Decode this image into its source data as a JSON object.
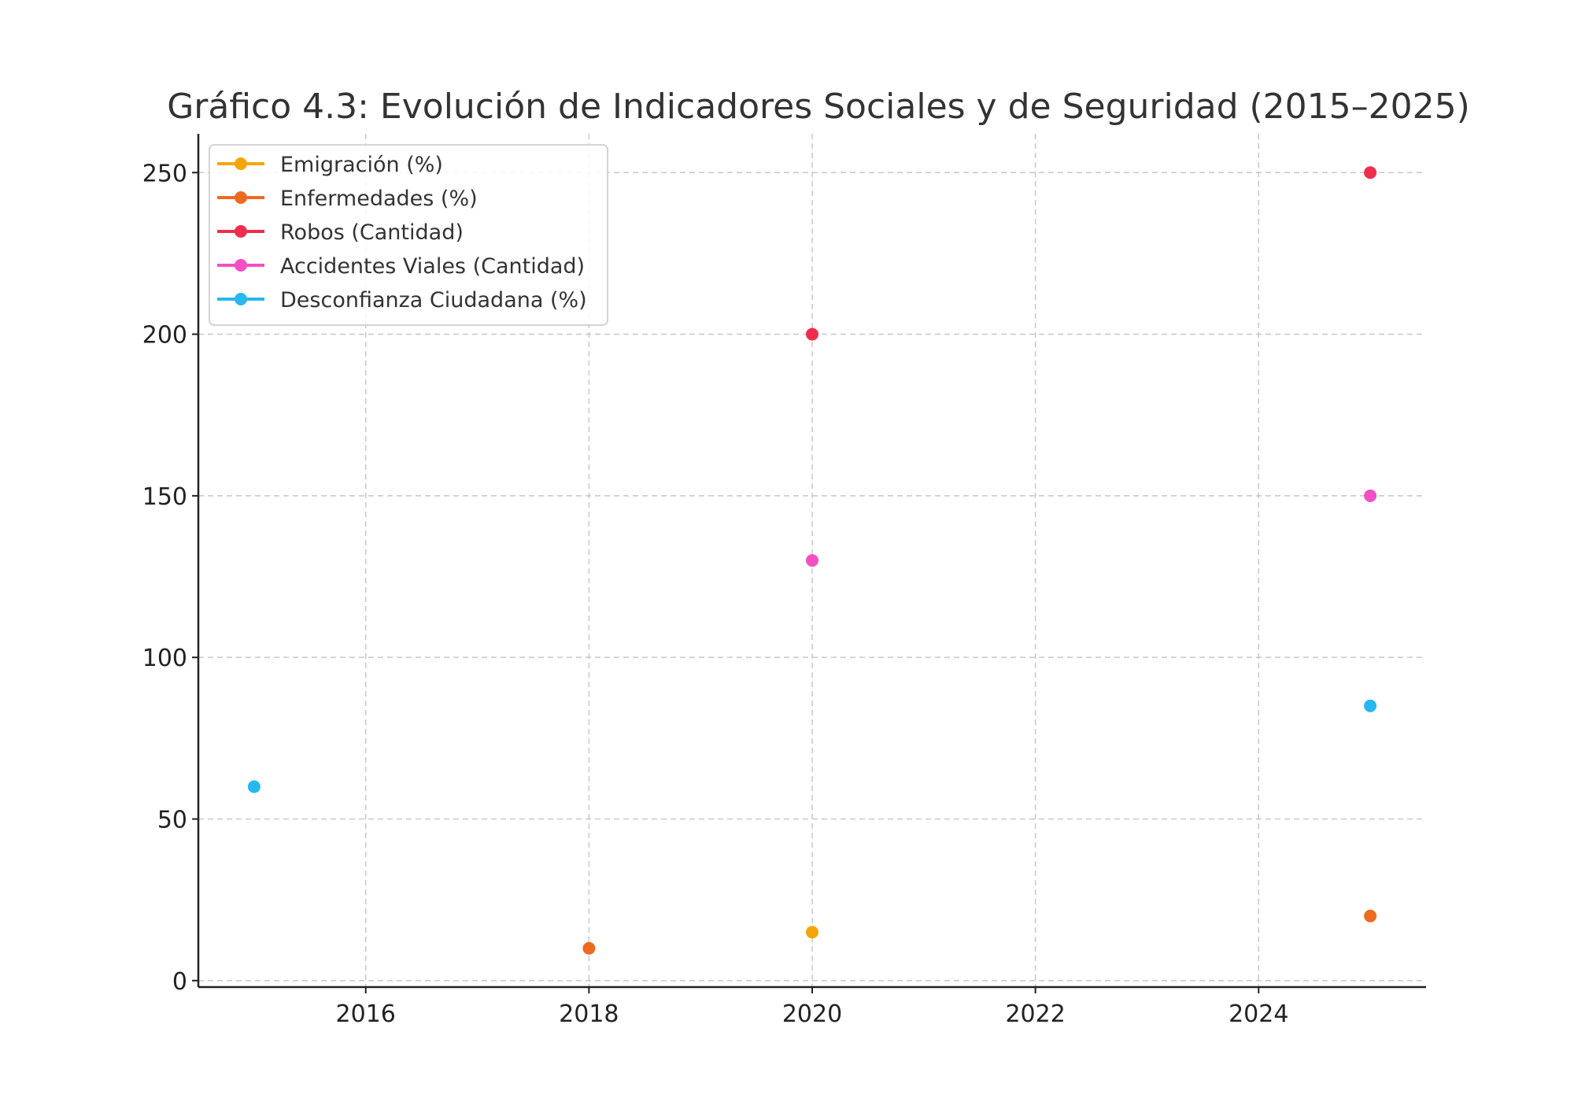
{
  "chart_data": {
    "type": "scatter",
    "title": "Gráfico 4.3: Evolución de Indicadores Sociales y de Seguridad (2015–2025)",
    "xlabel": "",
    "ylabel": "",
    "xlim": [
      2014.5,
      2025.5
    ],
    "ylim": [
      -2,
      262
    ],
    "x_ticks": [
      2016,
      2018,
      2020,
      2022,
      2024
    ],
    "y_ticks": [
      0,
      50,
      100,
      150,
      200,
      250
    ],
    "grid": true,
    "legend_position": "top-left",
    "series": [
      {
        "name": "Emigración (%)",
        "color": "#f5a50a",
        "points": [
          [
            2020,
            15
          ]
        ]
      },
      {
        "name": "Enfermedades (%)",
        "color": "#ee6a1f",
        "points": [
          [
            2018,
            10
          ],
          [
            2025,
            20
          ]
        ]
      },
      {
        "name": "Robos (Cantidad)",
        "color": "#ee2e4e",
        "points": [
          [
            2020,
            200
          ],
          [
            2025,
            250
          ]
        ]
      },
      {
        "name": "Accidentes Viales (Cantidad)",
        "color": "#f250c4",
        "points": [
          [
            2020,
            130
          ],
          [
            2025,
            150
          ]
        ]
      },
      {
        "name": "Desconfianza Ciudadana (%)",
        "color": "#27b8ef",
        "points": [
          [
            2015,
            60
          ],
          [
            2025,
            85
          ]
        ]
      }
    ]
  }
}
